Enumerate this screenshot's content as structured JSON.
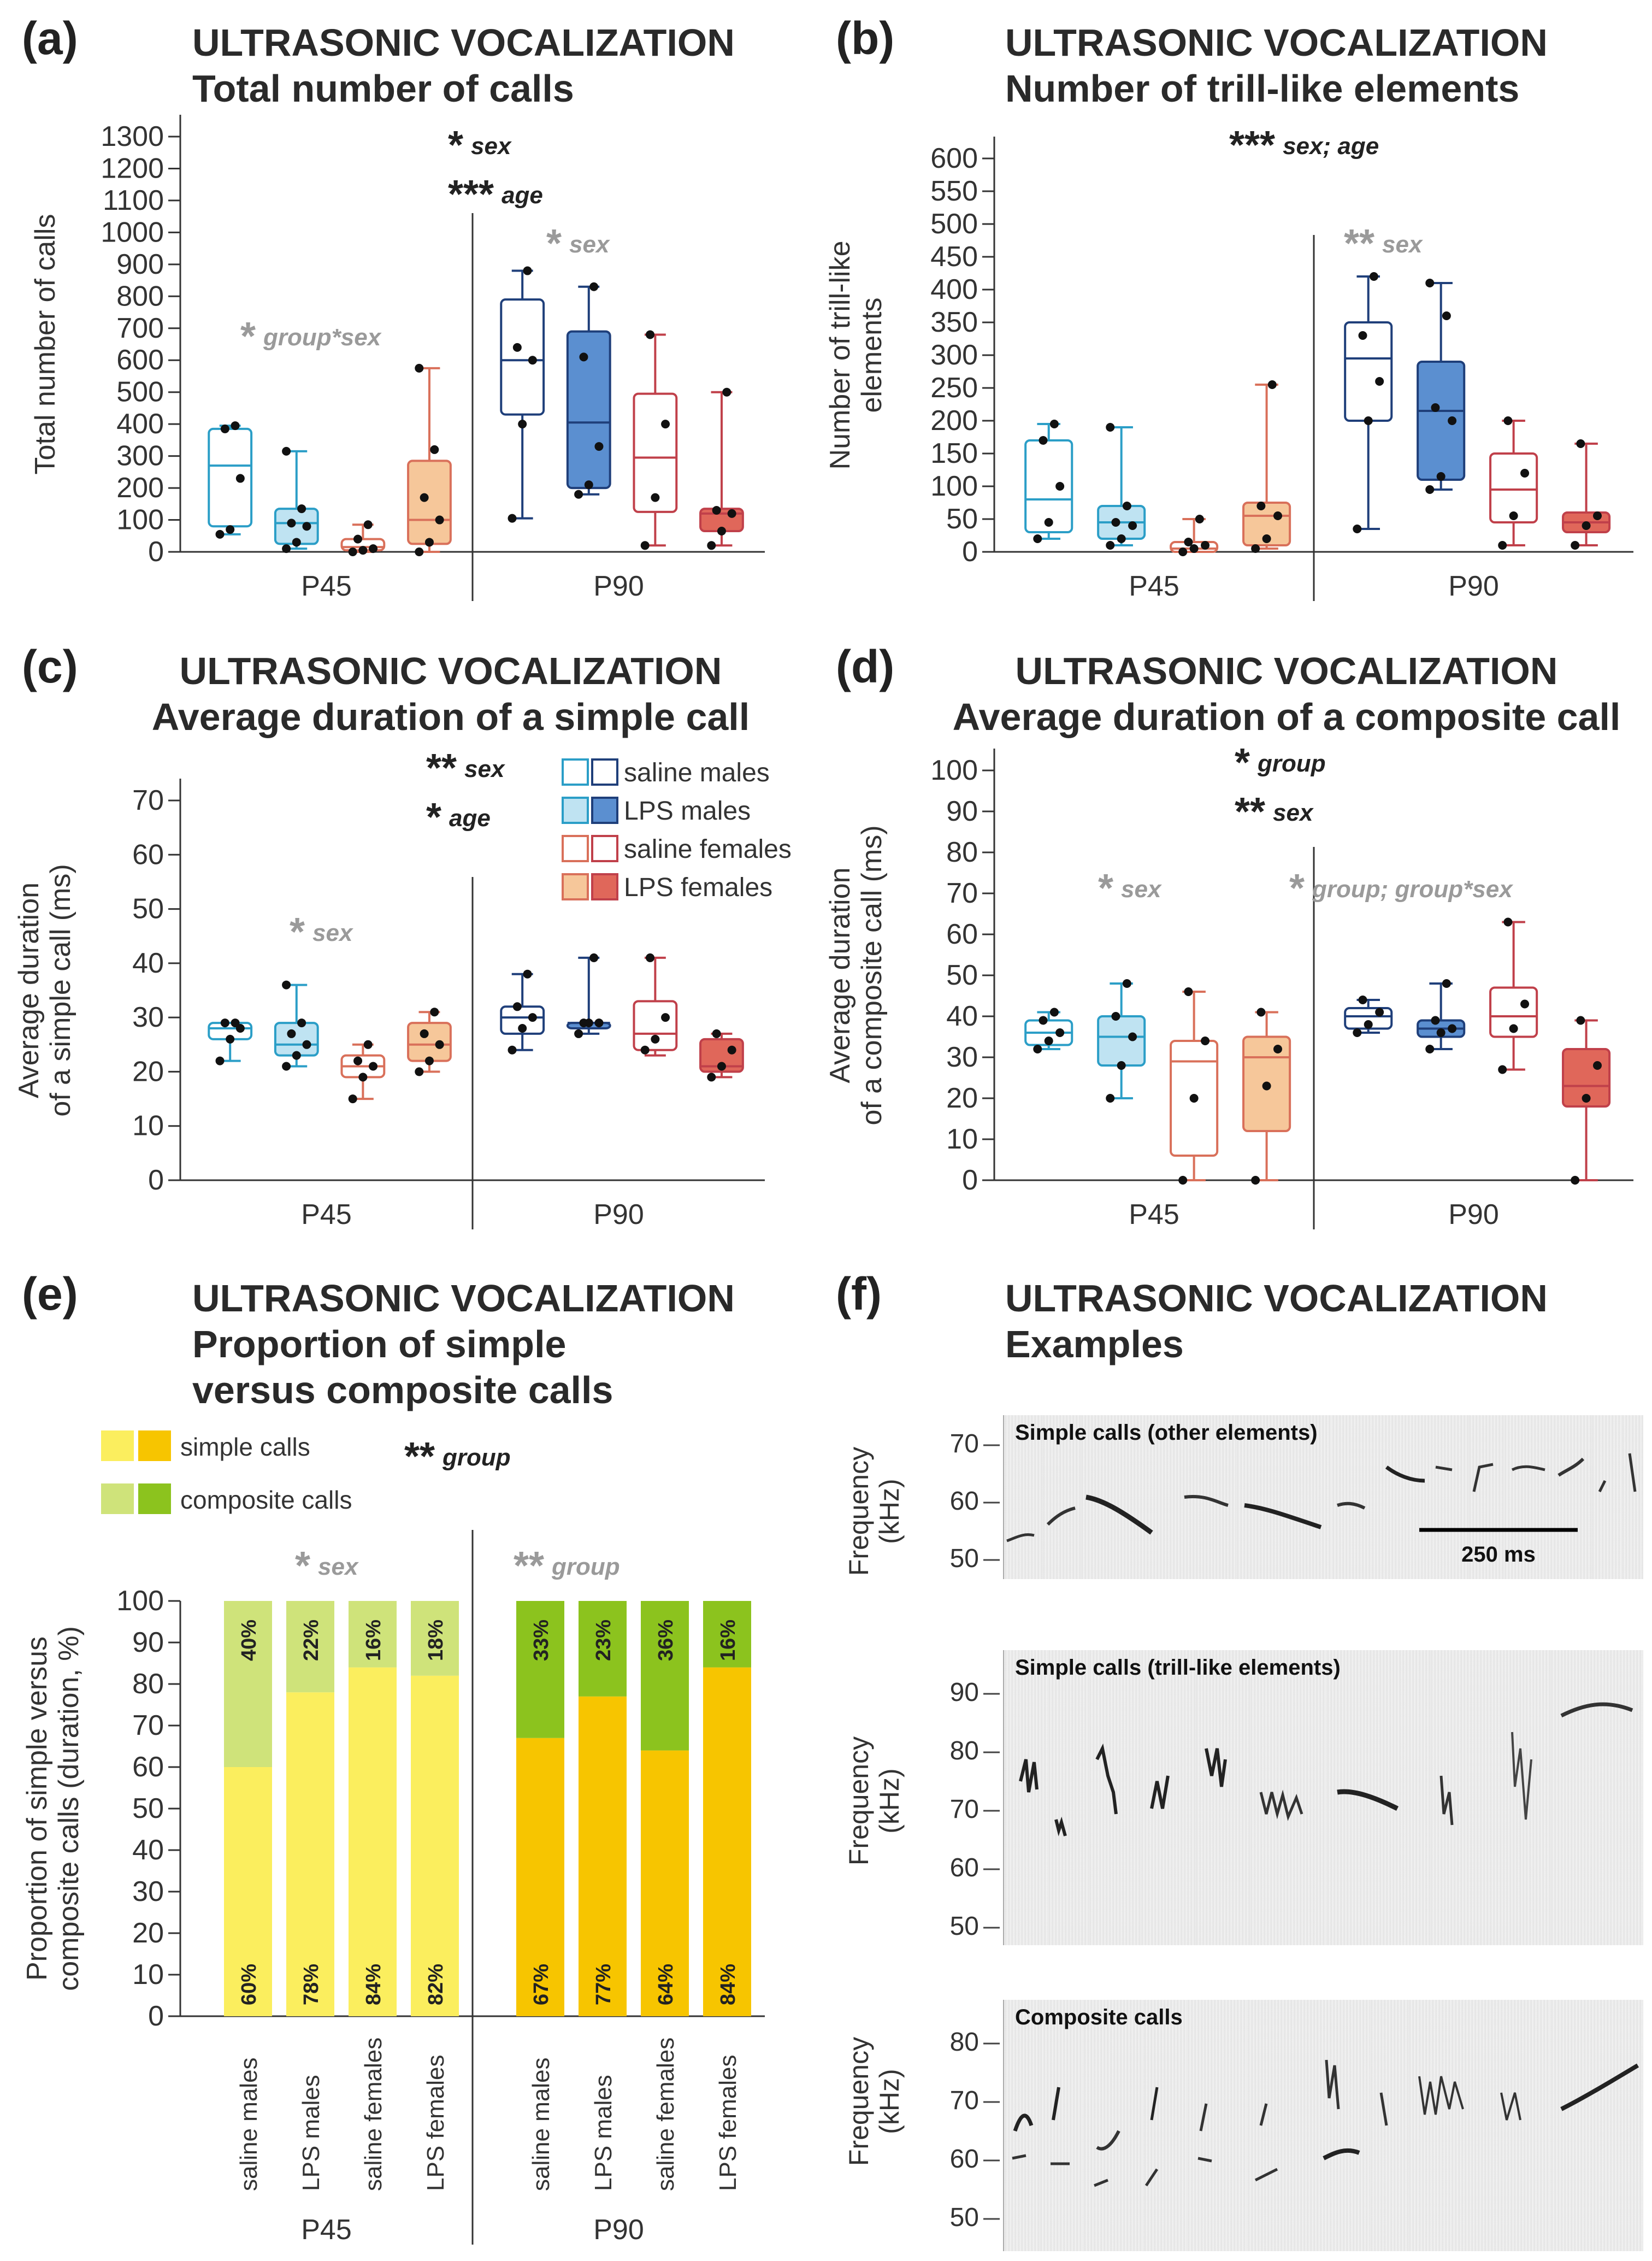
{
  "colors": {
    "saline_males": "#2b9ec7",
    "lps_males_fill_p45": "#bfe3f2",
    "lps_males_edge_p45": "#2b9ec7",
    "saline_males_p90": "#1f3f7a",
    "lps_males_fill_p90": "#5b8fd0",
    "saline_females": "#d9705a",
    "lps_females_fill_p45": "#f6c79a",
    "lps_females_fill_p90": "#e0675a",
    "saline_females_p90": "#c0404a",
    "simple_light": "#fbee5e",
    "simple_dark": "#f7c500",
    "composite_light": "#cfe37a",
    "composite_dark": "#8cc31e",
    "sig_black": "#222222",
    "sig_gray": "#9a9a9a"
  },
  "legend": {
    "saline_males": "saline males",
    "lps_males": "LPS males",
    "saline_females": "saline females",
    "lps_females": "LPS females",
    "simple_calls": "simple calls",
    "composite_calls": "composite calls"
  },
  "chart_data": [
    {
      "panel": "(a)",
      "type": "box",
      "title": "ULTRASONIC VOCALIZATION",
      "subtitle": "Total number of calls",
      "ylabel": "Total number of calls",
      "ylim": [
        0,
        1300
      ],
      "yticks": [
        0,
        100,
        200,
        300,
        400,
        500,
        600,
        700,
        800,
        900,
        1000,
        1100,
        1200,
        1300
      ],
      "groups": [
        "P45",
        "P90"
      ],
      "annotations": [
        {
          "stars": "*",
          "text": "sex",
          "style": "black"
        },
        {
          "stars": "***",
          "text": "age",
          "style": "black"
        },
        {
          "stars": "*",
          "text": "group*sex",
          "style": "gray",
          "group": "P45"
        },
        {
          "stars": "*",
          "text": "sex",
          "style": "gray",
          "group": "P90"
        }
      ],
      "boxes": [
        {
          "group": "P45",
          "series": "saline males",
          "q1": 80,
          "median": 270,
          "q3": 385,
          "min": 55,
          "max": 395,
          "points": [
            55,
            70,
            230,
            385,
            395
          ]
        },
        {
          "group": "P45",
          "series": "LPS males",
          "q1": 25,
          "median": 90,
          "q3": 135,
          "min": 10,
          "max": 315,
          "points": [
            10,
            30,
            80,
            90,
            135,
            315
          ]
        },
        {
          "group": "P45",
          "series": "saline females",
          "q1": 5,
          "median": 15,
          "q3": 40,
          "min": 0,
          "max": 85,
          "points": [
            0,
            5,
            10,
            40,
            85
          ]
        },
        {
          "group": "P45",
          "series": "LPS females",
          "q1": 25,
          "median": 100,
          "q3": 285,
          "min": 0,
          "max": 575,
          "points": [
            0,
            30,
            100,
            170,
            320,
            575
          ]
        },
        {
          "group": "P90",
          "series": "saline males",
          "q1": 430,
          "median": 600,
          "q3": 790,
          "min": 105,
          "max": 880,
          "points": [
            105,
            400,
            600,
            640,
            880
          ]
        },
        {
          "group": "P90",
          "series": "LPS males",
          "q1": 200,
          "median": 405,
          "q3": 690,
          "min": 180,
          "max": 830,
          "points": [
            180,
            210,
            330,
            610,
            830
          ]
        },
        {
          "group": "P90",
          "series": "saline females",
          "q1": 125,
          "median": 295,
          "q3": 495,
          "min": 20,
          "max": 680,
          "points": [
            20,
            170,
            400,
            680
          ]
        },
        {
          "group": "P90",
          "series": "LPS females",
          "q1": 65,
          "median": 120,
          "q3": 135,
          "min": 20,
          "max": 500,
          "points": [
            20,
            65,
            120,
            130,
            500
          ]
        }
      ]
    },
    {
      "panel": "(b)",
      "type": "box",
      "title": "ULTRASONIC VOCALIZATION",
      "subtitle": "Number of trill-like elements",
      "ylabel": "Number of trill-like elements",
      "ylim": [
        0,
        600
      ],
      "yticks": [
        0,
        50,
        100,
        150,
        200,
        250,
        300,
        350,
        400,
        450,
        500,
        550,
        600
      ],
      "groups": [
        "P45",
        "P90"
      ],
      "annotations": [
        {
          "stars": "***",
          "text": "sex; age",
          "style": "black"
        },
        {
          "stars": "**",
          "text": "sex",
          "style": "gray",
          "group": "P90"
        }
      ],
      "boxes": [
        {
          "group": "P45",
          "series": "saline males",
          "q1": 30,
          "median": 80,
          "q3": 170,
          "min": 20,
          "max": 195,
          "points": [
            20,
            45,
            100,
            170,
            195
          ]
        },
        {
          "group": "P45",
          "series": "LPS males",
          "q1": 20,
          "median": 45,
          "q3": 70,
          "min": 10,
          "max": 190,
          "points": [
            10,
            20,
            40,
            45,
            70,
            190
          ]
        },
        {
          "group": "P45",
          "series": "saline females",
          "q1": 0,
          "median": 5,
          "q3": 15,
          "min": 0,
          "max": 50,
          "points": [
            0,
            5,
            10,
            15,
            50
          ]
        },
        {
          "group": "P45",
          "series": "LPS females",
          "q1": 10,
          "median": 55,
          "q3": 75,
          "min": 5,
          "max": 255,
          "points": [
            5,
            20,
            55,
            70,
            255
          ]
        },
        {
          "group": "P90",
          "series": "saline males",
          "q1": 200,
          "median": 295,
          "q3": 350,
          "min": 35,
          "max": 420,
          "points": [
            35,
            200,
            260,
            330,
            420
          ]
        },
        {
          "group": "P90",
          "series": "LPS males",
          "q1": 110,
          "median": 215,
          "q3": 290,
          "min": 95,
          "max": 410,
          "points": [
            95,
            115,
            200,
            220,
            360,
            410
          ]
        },
        {
          "group": "P90",
          "series": "saline females",
          "q1": 45,
          "median": 95,
          "q3": 150,
          "min": 10,
          "max": 200,
          "points": [
            10,
            55,
            120,
            200
          ]
        },
        {
          "group": "P90",
          "series": "LPS females",
          "q1": 30,
          "median": 45,
          "q3": 60,
          "min": 10,
          "max": 165,
          "points": [
            10,
            40,
            55,
            165
          ]
        }
      ]
    },
    {
      "panel": "(c)",
      "type": "box",
      "title": "ULTRASONIC VOCALIZATION",
      "subtitle": "Average duration of a simple call",
      "ylabel": "Average duration of a simple call (ms)",
      "ylim": [
        0,
        70
      ],
      "yticks": [
        0,
        10,
        20,
        30,
        40,
        50,
        60,
        70
      ],
      "groups": [
        "P45",
        "P90"
      ],
      "annotations": [
        {
          "stars": "**",
          "text": "sex",
          "style": "black"
        },
        {
          "stars": "*",
          "text": "age",
          "style": "black"
        },
        {
          "stars": "*",
          "text": "sex",
          "style": "gray",
          "group": "P45"
        }
      ],
      "boxes": [
        {
          "group": "P45",
          "series": "saline males",
          "q1": 26,
          "median": 28,
          "q3": 29,
          "min": 22,
          "max": 29,
          "points": [
            22,
            26,
            28,
            29,
            29
          ]
        },
        {
          "group": "P45",
          "series": "LPS males",
          "q1": 23,
          "median": 25,
          "q3": 29,
          "min": 21,
          "max": 36,
          "points": [
            21,
            23,
            25,
            27,
            29,
            36
          ]
        },
        {
          "group": "P45",
          "series": "saline females",
          "q1": 19,
          "median": 21,
          "q3": 23,
          "min": 15,
          "max": 25,
          "points": [
            15,
            19,
            21,
            22,
            25
          ]
        },
        {
          "group": "P45",
          "series": "LPS females",
          "q1": 22,
          "median": 25,
          "q3": 29,
          "min": 20,
          "max": 31,
          "points": [
            20,
            22,
            25,
            27,
            31
          ]
        },
        {
          "group": "P90",
          "series": "saline males",
          "q1": 27,
          "median": 30,
          "q3": 32,
          "min": 24,
          "max": 38,
          "points": [
            24,
            28,
            30,
            32,
            38
          ]
        },
        {
          "group": "P90",
          "series": "LPS males",
          "q1": 28,
          "median": 29,
          "q3": 29,
          "min": 27,
          "max": 41,
          "points": [
            27,
            29,
            29,
            29,
            41
          ]
        },
        {
          "group": "P90",
          "series": "saline females",
          "q1": 24,
          "median": 27,
          "q3": 33,
          "min": 23,
          "max": 41,
          "points": [
            24,
            26,
            30,
            41
          ]
        },
        {
          "group": "P90",
          "series": "LPS females",
          "q1": 20,
          "median": 21,
          "q3": 26,
          "min": 19,
          "max": 27,
          "points": [
            19,
            21,
            24,
            27
          ]
        }
      ]
    },
    {
      "panel": "(d)",
      "type": "box",
      "title": "ULTRASONIC VOCALIZATION",
      "subtitle": "Average duration of a composite call",
      "ylabel": "Average duration of a composite call (ms)",
      "ylim": [
        0,
        100
      ],
      "yticks": [
        0,
        10,
        20,
        30,
        40,
        50,
        60,
        70,
        80,
        90,
        100
      ],
      "groups": [
        "P45",
        "P90"
      ],
      "annotations": [
        {
          "stars": "*",
          "text": "group",
          "style": "black"
        },
        {
          "stars": "**",
          "text": "sex",
          "style": "black"
        },
        {
          "stars": "*",
          "text": "sex",
          "style": "gray",
          "group": "P45"
        },
        {
          "stars": "*",
          "text": "group; group*sex",
          "style": "gray",
          "group": "P90"
        }
      ],
      "boxes": [
        {
          "group": "P45",
          "series": "saline males",
          "q1": 33,
          "median": 36,
          "q3": 39,
          "min": 32,
          "max": 41,
          "points": [
            32,
            34,
            36,
            39,
            41
          ]
        },
        {
          "group": "P45",
          "series": "LPS males",
          "q1": 28,
          "median": 35,
          "q3": 40,
          "min": 20,
          "max": 48,
          "points": [
            20,
            28,
            35,
            40,
            48
          ]
        },
        {
          "group": "P45",
          "series": "saline females",
          "q1": 6,
          "median": 29,
          "q3": 34,
          "min": 0,
          "max": 46,
          "points": [
            0,
            20,
            34,
            46
          ]
        },
        {
          "group": "P45",
          "series": "LPS females",
          "q1": 12,
          "median": 30,
          "q3": 35,
          "min": 0,
          "max": 41,
          "points": [
            0,
            23,
            32,
            41
          ]
        },
        {
          "group": "P90",
          "series": "saline males",
          "q1": 37,
          "median": 40,
          "q3": 42,
          "min": 36,
          "max": 44,
          "points": [
            36,
            38,
            41,
            44
          ]
        },
        {
          "group": "P90",
          "series": "LPS males",
          "q1": 35,
          "median": 37,
          "q3": 39,
          "min": 32,
          "max": 48,
          "points": [
            32,
            36,
            37,
            39,
            48
          ]
        },
        {
          "group": "P90",
          "series": "saline females",
          "q1": 35,
          "median": 40,
          "q3": 47,
          "min": 27,
          "max": 63,
          "points": [
            27,
            37,
            43,
            63
          ]
        },
        {
          "group": "P90",
          "series": "LPS females",
          "q1": 18,
          "median": 23,
          "q3": 32,
          "min": 0,
          "max": 39,
          "points": [
            0,
            20,
            28,
            39
          ]
        }
      ]
    },
    {
      "panel": "(e)",
      "type": "stacked-bar",
      "title": "ULTRASONIC VOCALIZATION",
      "subtitle_lines": [
        "Proportion of simple",
        "versus composite calls"
      ],
      "ylabel": "Proportion of simple versus composite calls (duration, %)",
      "ylim": [
        0,
        100
      ],
      "yticks": [
        0,
        10,
        20,
        30,
        40,
        50,
        60,
        70,
        80,
        90,
        100
      ],
      "categories": [
        "saline males",
        "LPS males",
        "saline females",
        "LPS females",
        "saline males",
        "LPS males",
        "saline females",
        "LPS females"
      ],
      "groups": [
        "P45",
        "P90"
      ],
      "series": [
        {
          "name": "simple calls",
          "values": [
            60,
            78,
            84,
            82,
            67,
            77,
            64,
            84
          ],
          "labels": [
            "60%",
            "78%",
            "84%",
            "82%",
            "67%",
            "77%",
            "64%",
            "84%"
          ]
        },
        {
          "name": "composite calls",
          "values": [
            40,
            22,
            16,
            18,
            33,
            23,
            36,
            16
          ],
          "labels": [
            "40%",
            "22%",
            "16%",
            "18%",
            "33%",
            "23%",
            "36%",
            "16%"
          ]
        }
      ],
      "annotations": [
        {
          "stars": "**",
          "text": "group",
          "style": "black"
        },
        {
          "stars": "*",
          "text": "sex",
          "style": "gray",
          "group": "P45"
        },
        {
          "stars": "**",
          "text": "group",
          "style": "gray",
          "group": "P90"
        }
      ]
    },
    {
      "panel": "(f)",
      "type": "spectrogram",
      "title": "ULTRASONIC VOCALIZATION",
      "subtitle": "Examples",
      "ylabel": "Frequency (kHz)",
      "scale_bar": "250 ms",
      "rows": [
        {
          "label": "Simple calls (other elements)",
          "yticks": [
            50,
            60,
            70
          ]
        },
        {
          "label": "Simple calls (trill-like elements)",
          "yticks": [
            50,
            60,
            70,
            80,
            90
          ]
        },
        {
          "label": "Composite calls",
          "yticks": [
            50,
            60,
            70,
            80
          ]
        }
      ]
    }
  ]
}
